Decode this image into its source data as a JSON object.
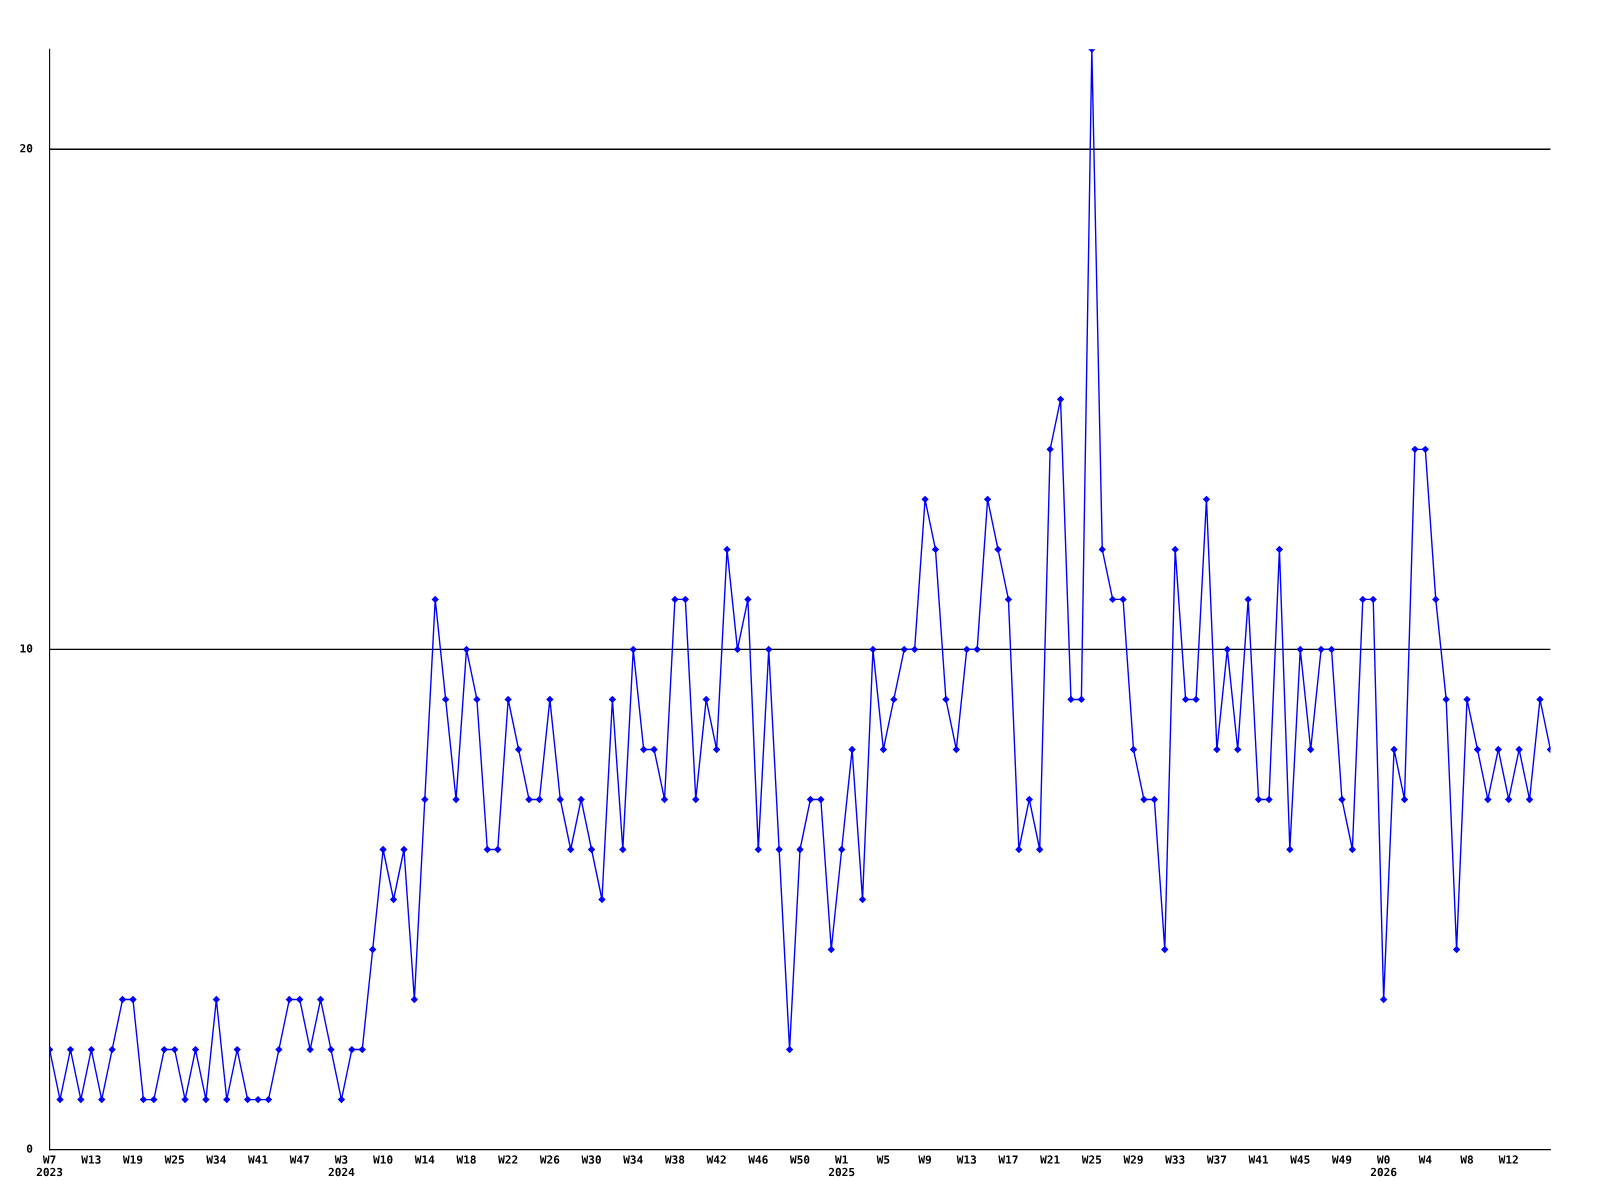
{
  "chart_data": {
    "type": "line",
    "categories": [
      "W7\n2023",
      null,
      null,
      null,
      "W13",
      null,
      null,
      null,
      "W19",
      null,
      null,
      null,
      "W25",
      null,
      null,
      null,
      "W34",
      null,
      null,
      null,
      "W41",
      null,
      null,
      null,
      "W47",
      null,
      null,
      null,
      "W3\n2024",
      null,
      null,
      null,
      "W10",
      null,
      null,
      null,
      "W14",
      null,
      null,
      null,
      "W18",
      null,
      null,
      null,
      "W22",
      null,
      null,
      null,
      "W26",
      null,
      null,
      null,
      "W30",
      null,
      null,
      null,
      "W34",
      null,
      null,
      null,
      "W38",
      null,
      null,
      null,
      "W42",
      null,
      null,
      null,
      "W46",
      null,
      null,
      null,
      "W50",
      null,
      null,
      null,
      "W1\n2025",
      null,
      null,
      null,
      "W5",
      null,
      null,
      null,
      "W9",
      null,
      null,
      null,
      "W13",
      null,
      null,
      null,
      "W17",
      null,
      null,
      null,
      "W21",
      null,
      null,
      null,
      "W25",
      null,
      null,
      null,
      "W29",
      null,
      null,
      null,
      "W33",
      null,
      null,
      null,
      "W37",
      null,
      null,
      null,
      "W41",
      null,
      null,
      null,
      "W45",
      null,
      null,
      null,
      "W49",
      null,
      null,
      null,
      "W0\n2026",
      null,
      null,
      null,
      "W4",
      null,
      null,
      null,
      "W8",
      null,
      null,
      null,
      "W12",
      null,
      null,
      null,
      null
    ],
    "series": [
      {
        "color": "#0000ff",
        "values": [
          2,
          1,
          2,
          1,
          2,
          1,
          2,
          3,
          3,
          1,
          1,
          2,
          2,
          1,
          2,
          1,
          3,
          1,
          2,
          1,
          1,
          1,
          2,
          3,
          3,
          2,
          3,
          2,
          1,
          2,
          2,
          4,
          6,
          5,
          6,
          3,
          7,
          11,
          9,
          7,
          10,
          9,
          6,
          6,
          9,
          8,
          7,
          7,
          9,
          7,
          6,
          7,
          6,
          5,
          9,
          6,
          10,
          8,
          8,
          7,
          11,
          11,
          7,
          9,
          8,
          12,
          10,
          11,
          6,
          10,
          6,
          2,
          6,
          7,
          7,
          4,
          6,
          8,
          5,
          10,
          8,
          9,
          10,
          10,
          13,
          12,
          9,
          8,
          10,
          10,
          13,
          12,
          11,
          6,
          7,
          6,
          14,
          15,
          9,
          9,
          22,
          12,
          11,
          11,
          8,
          7,
          7,
          4,
          12,
          9,
          9,
          13,
          8,
          10,
          8,
          11,
          7,
          7,
          12,
          6,
          10,
          8,
          10,
          10,
          7,
          6,
          11,
          11,
          3,
          8,
          7,
          14,
          14,
          11,
          9,
          4,
          9,
          8,
          7,
          8,
          7,
          8,
          7,
          9,
          8
        ]
      }
    ],
    "ylim": [
      0,
      22
    ],
    "yticks": [
      0,
      10,
      20
    ],
    "grid": "y",
    "marker": "diamond",
    "line_style": "solid",
    "legend": false
  }
}
